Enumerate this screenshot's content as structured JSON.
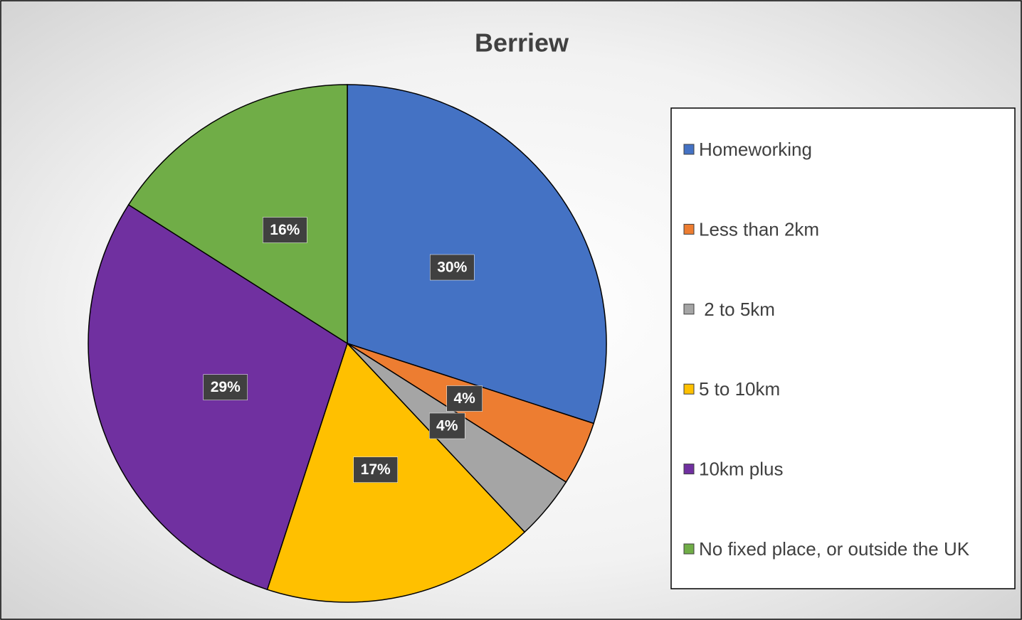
{
  "chart_data": {
    "type": "pie",
    "title": "Berriew",
    "categories": [
      "Homeworking",
      "Less than 2km",
      " 2 to 5km",
      "5 to 10km",
      "10km plus",
      "No fixed place, or outside the UK"
    ],
    "values": [
      30,
      4,
      4,
      17,
      29,
      16
    ],
    "value_labels": [
      "30%",
      "4%",
      "4%",
      "17%",
      "29%",
      "16%"
    ],
    "colors": [
      "#4472c4",
      "#ed7d31",
      "#a5a5a5",
      "#ffc000",
      "#7030a0",
      "#70ad47"
    ],
    "legend": "right"
  }
}
